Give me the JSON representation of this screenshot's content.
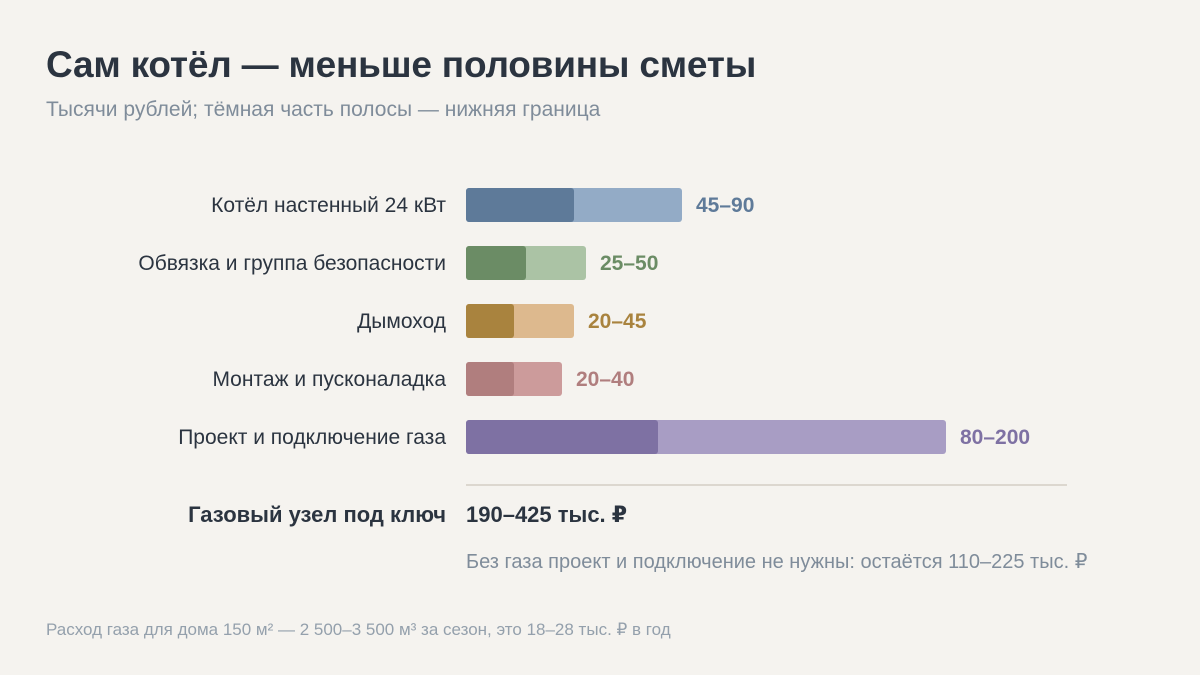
{
  "header": {
    "title": "Сам котёл — меньше половины сметы",
    "subtitle": "Тысячи рублей; тёмная часть полосы — нижняя граница"
  },
  "chart_data": {
    "type": "bar",
    "orientation": "horizontal",
    "value_unit": "тыс. ₽",
    "categories": [
      "Котёл настенный 24 кВт",
      "Обвязка и группа безопасности",
      "Дымоход",
      "Монтаж и пусконаладка",
      "Проект и подключение газа"
    ],
    "ranges": [
      {
        "low": 45,
        "high": 90,
        "label": "45–90",
        "color_dark": "#5e7a99",
        "color_light": "#93abc6",
        "label_color": "#5e7a99"
      },
      {
        "low": 25,
        "high": 50,
        "label": "25–50",
        "color_dark": "#6b8c65",
        "color_light": "#abc3a5",
        "label_color": "#6b8c65"
      },
      {
        "low": 20,
        "high": 45,
        "label": "20–45",
        "color_dark": "#a9833e",
        "color_light": "#ddb98e",
        "label_color": "#a9833e"
      },
      {
        "low": 20,
        "high": 40,
        "label": "20–40",
        "color_dark": "#b07e7e",
        "color_light": "#cc9b9b",
        "label_color": "#b07e7e"
      },
      {
        "low": 80,
        "high": 200,
        "label": "80–200",
        "color_dark": "#7e71a3",
        "color_light": "#a89dc4",
        "label_color": "#7e71a3"
      }
    ],
    "xlim": [
      0,
      200
    ],
    "grid": false
  },
  "total": {
    "label": "Газовый узел под ключ",
    "value": "190–425 тыс. ₽",
    "note": "Без газа проект и подключение не нужны: остаётся 110–225 тыс. ₽"
  },
  "footnote": "Расход газа для дома 150 м² — 2 500–3 500 м³ за сезон, это 18–28 тыс. ₽ в год"
}
